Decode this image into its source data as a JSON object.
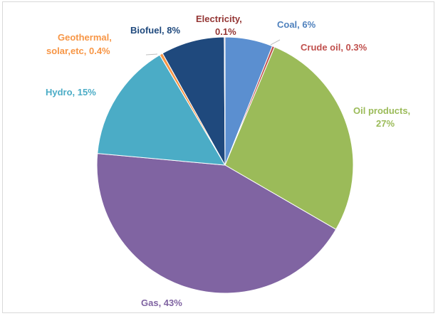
{
  "chart_data": {
    "type": "pie",
    "title": "",
    "start_angle_deg": 0,
    "direction": "clockwise",
    "slices": [
      {
        "label": "Coal",
        "value_text": "6%",
        "value": 6,
        "color": "#5b8fd0",
        "label_color": "#4f81bd"
      },
      {
        "label": "Crude oil",
        "value_text": "0.3%",
        "value": 0.3,
        "color": "#c0504d",
        "label_color": "#c0504d"
      },
      {
        "label": "Oil products,",
        "value_text": "27%",
        "value": 27,
        "color": "#9bbb59",
        "label_color": "#9bbb59"
      },
      {
        "label": "Gas",
        "value_text": "43%",
        "value": 43,
        "color": "#8064a2",
        "label_color": "#8064a2"
      },
      {
        "label": "Hydro",
        "value_text": "15%",
        "value": 15,
        "color": "#4bacc6",
        "label_color": "#4bacc6"
      },
      {
        "label": "Geothermal,",
        "label2": "solar,etc",
        "value_text": "0.4%",
        "value": 0.4,
        "color": "#f79646",
        "label_color": "#f79646"
      },
      {
        "label": "Biofuel",
        "value_text": "8%",
        "value": 8,
        "color": "#1f497d",
        "label_color": "#1f497d"
      },
      {
        "label": "Electricity,",
        "value_text": "0.1%",
        "value": 0.1,
        "color": "#c0504d",
        "label_color": "#943634"
      }
    ]
  }
}
